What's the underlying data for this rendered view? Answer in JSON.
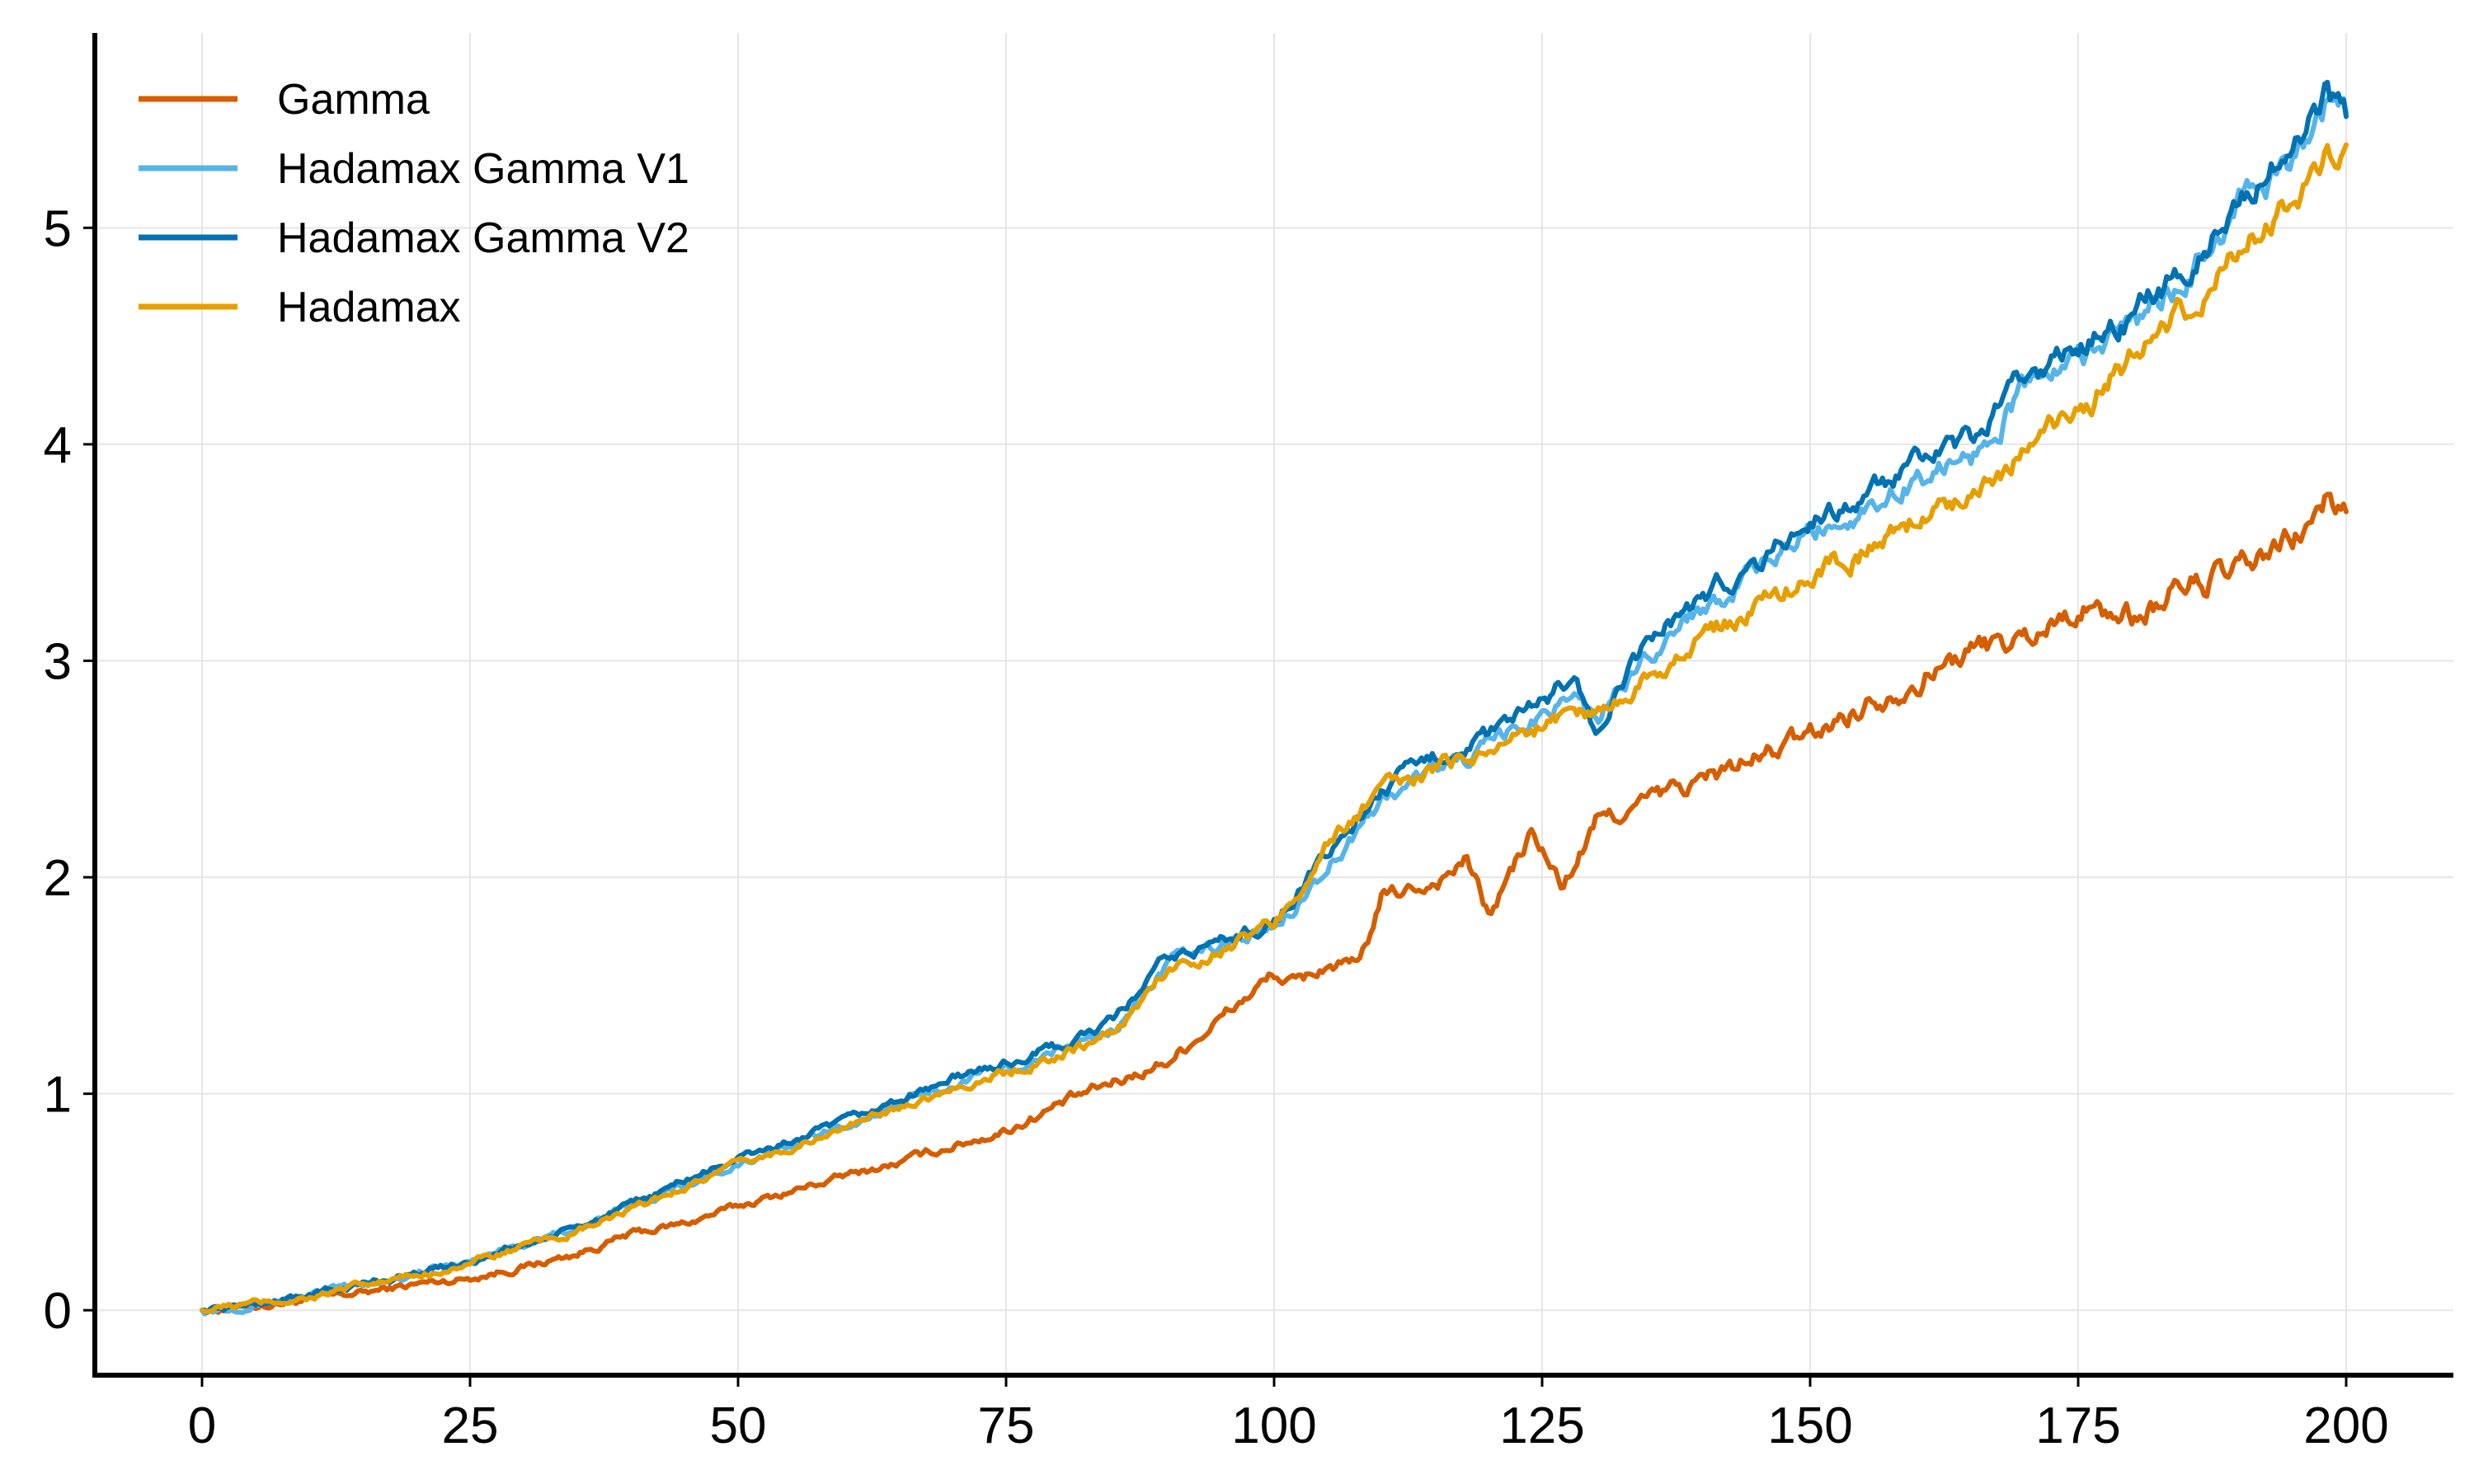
{
  "chart_data": {
    "type": "line",
    "title": "",
    "xlabel": "",
    "ylabel": "",
    "xlim": [
      -10,
      210
    ],
    "ylim": [
      -0.3,
      5.9
    ],
    "xticks": [
      0,
      25,
      50,
      75,
      100,
      125,
      150,
      175,
      200
    ],
    "xtick_labels": [
      "0",
      "25",
      "50",
      "75",
      "100",
      "125",
      "150",
      "175",
      "200"
    ],
    "yticks": [
      0,
      1,
      2,
      3,
      4,
      5
    ],
    "ytick_labels": [
      "0",
      "1",
      "2",
      "3",
      "4",
      "5"
    ],
    "grid": true,
    "legend_position": "top-left",
    "series": [
      {
        "name": "Gamma",
        "color": "#D55E00",
        "points": [
          [
            0,
            0
          ],
          [
            5,
            0.02
          ],
          [
            10,
            0.05
          ],
          [
            15,
            0.08
          ],
          [
            20,
            0.12
          ],
          [
            25,
            0.15
          ],
          [
            30,
            0.2
          ],
          [
            35,
            0.26
          ],
          [
            40,
            0.35
          ],
          [
            45,
            0.4
          ],
          [
            50,
            0.48
          ],
          [
            55,
            0.55
          ],
          [
            60,
            0.62
          ],
          [
            65,
            0.68
          ],
          [
            70,
            0.76
          ],
          [
            75,
            0.83
          ],
          [
            80,
            0.95
          ],
          [
            85,
            1.05
          ],
          [
            90,
            1.15
          ],
          [
            95,
            1.35
          ],
          [
            100,
            1.55
          ],
          [
            102,
            1.5
          ],
          [
            105,
            1.6
          ],
          [
            108,
            1.58
          ],
          [
            110,
            1.9
          ],
          [
            115,
            1.98
          ],
          [
            118,
            2.08
          ],
          [
            120,
            1.82
          ],
          [
            124,
            2.2
          ],
          [
            127,
            1.95
          ],
          [
            130,
            2.25
          ],
          [
            135,
            2.35
          ],
          [
            140,
            2.45
          ],
          [
            145,
            2.55
          ],
          [
            150,
            2.65
          ],
          [
            155,
            2.8
          ],
          [
            160,
            2.92
          ],
          [
            165,
            3.05
          ],
          [
            170,
            3.1
          ],
          [
            175,
            3.25
          ],
          [
            180,
            3.2
          ],
          [
            185,
            3.35
          ],
          [
            190,
            3.4
          ],
          [
            195,
            3.55
          ],
          [
            198,
            3.72
          ],
          [
            200,
            3.7
          ]
        ]
      },
      {
        "name": "Hadamax Gamma V1",
        "color": "#56B4E9",
        "points": [
          [
            0,
            0
          ],
          [
            5,
            0.03
          ],
          [
            10,
            0.07
          ],
          [
            15,
            0.12
          ],
          [
            20,
            0.17
          ],
          [
            25,
            0.23
          ],
          [
            30,
            0.3
          ],
          [
            35,
            0.38
          ],
          [
            40,
            0.48
          ],
          [
            45,
            0.58
          ],
          [
            50,
            0.68
          ],
          [
            55,
            0.76
          ],
          [
            60,
            0.85
          ],
          [
            65,
            0.95
          ],
          [
            70,
            1.05
          ],
          [
            75,
            1.12
          ],
          [
            80,
            1.2
          ],
          [
            85,
            1.3
          ],
          [
            90,
            1.6
          ],
          [
            95,
            1.68
          ],
          [
            100,
            1.78
          ],
          [
            105,
            2.05
          ],
          [
            110,
            2.35
          ],
          [
            115,
            2.5
          ],
          [
            118,
            2.55
          ],
          [
            120,
            2.6
          ],
          [
            125,
            2.75
          ],
          [
            128,
            2.88
          ],
          [
            130,
            2.7
          ],
          [
            135,
            3.05
          ],
          [
            140,
            3.25
          ],
          [
            145,
            3.4
          ],
          [
            150,
            3.6
          ],
          [
            155,
            3.7
          ],
          [
            160,
            3.85
          ],
          [
            165,
            3.95
          ],
          [
            170,
            4.25
          ],
          [
            175,
            4.4
          ],
          [
            180,
            4.55
          ],
          [
            185,
            4.75
          ],
          [
            190,
            5.1
          ],
          [
            195,
            5.3
          ],
          [
            198,
            5.55
          ],
          [
            200,
            5.5
          ]
        ]
      },
      {
        "name": "Hadamax Gamma V2",
        "color": "#0072B2",
        "points": [
          [
            0,
            0
          ],
          [
            5,
            0.03
          ],
          [
            10,
            0.07
          ],
          [
            15,
            0.12
          ],
          [
            20,
            0.17
          ],
          [
            25,
            0.23
          ],
          [
            30,
            0.3
          ],
          [
            35,
            0.38
          ],
          [
            40,
            0.48
          ],
          [
            45,
            0.6
          ],
          [
            50,
            0.7
          ],
          [
            55,
            0.78
          ],
          [
            60,
            0.87
          ],
          [
            65,
            0.97
          ],
          [
            70,
            1.07
          ],
          [
            75,
            1.14
          ],
          [
            80,
            1.22
          ],
          [
            85,
            1.33
          ],
          [
            90,
            1.62
          ],
          [
            95,
            1.7
          ],
          [
            100,
            1.8
          ],
          [
            105,
            2.1
          ],
          [
            110,
            2.4
          ],
          [
            115,
            2.55
          ],
          [
            118,
            2.62
          ],
          [
            120,
            2.65
          ],
          [
            125,
            2.8
          ],
          [
            128,
            2.95
          ],
          [
            130,
            2.65
          ],
          [
            135,
            3.1
          ],
          [
            140,
            3.3
          ],
          [
            145,
            3.45
          ],
          [
            150,
            3.65
          ],
          [
            155,
            3.75
          ],
          [
            160,
            3.9
          ],
          [
            165,
            4.0
          ],
          [
            170,
            4.3
          ],
          [
            175,
            4.45
          ],
          [
            180,
            4.6
          ],
          [
            185,
            4.8
          ],
          [
            190,
            5.15
          ],
          [
            195,
            5.35
          ],
          [
            198,
            5.6
          ],
          [
            200,
            5.5
          ]
        ]
      },
      {
        "name": "Hadamax",
        "color": "#E69F00",
        "points": [
          [
            0,
            0
          ],
          [
            5,
            0.03
          ],
          [
            10,
            0.06
          ],
          [
            15,
            0.11
          ],
          [
            20,
            0.16
          ],
          [
            25,
            0.22
          ],
          [
            30,
            0.29
          ],
          [
            35,
            0.36
          ],
          [
            40,
            0.46
          ],
          [
            45,
            0.57
          ],
          [
            50,
            0.67
          ],
          [
            55,
            0.75
          ],
          [
            60,
            0.84
          ],
          [
            65,
            0.94
          ],
          [
            70,
            1.03
          ],
          [
            75,
            1.1
          ],
          [
            80,
            1.18
          ],
          [
            85,
            1.28
          ],
          [
            90,
            1.57
          ],
          [
            95,
            1.67
          ],
          [
            100,
            1.78
          ],
          [
            105,
            2.15
          ],
          [
            110,
            2.4
          ],
          [
            115,
            2.5
          ],
          [
            120,
            2.6
          ],
          [
            125,
            2.7
          ],
          [
            128,
            2.78
          ],
          [
            130,
            2.75
          ],
          [
            135,
            2.95
          ],
          [
            140,
            3.1
          ],
          [
            145,
            3.25
          ],
          [
            150,
            3.4
          ],
          [
            155,
            3.5
          ],
          [
            160,
            3.65
          ],
          [
            165,
            3.8
          ],
          [
            170,
            3.95
          ],
          [
            175,
            4.15
          ],
          [
            180,
            4.4
          ],
          [
            185,
            4.6
          ],
          [
            190,
            4.9
          ],
          [
            195,
            5.15
          ],
          [
            198,
            5.3
          ],
          [
            200,
            5.28
          ]
        ]
      }
    ]
  }
}
